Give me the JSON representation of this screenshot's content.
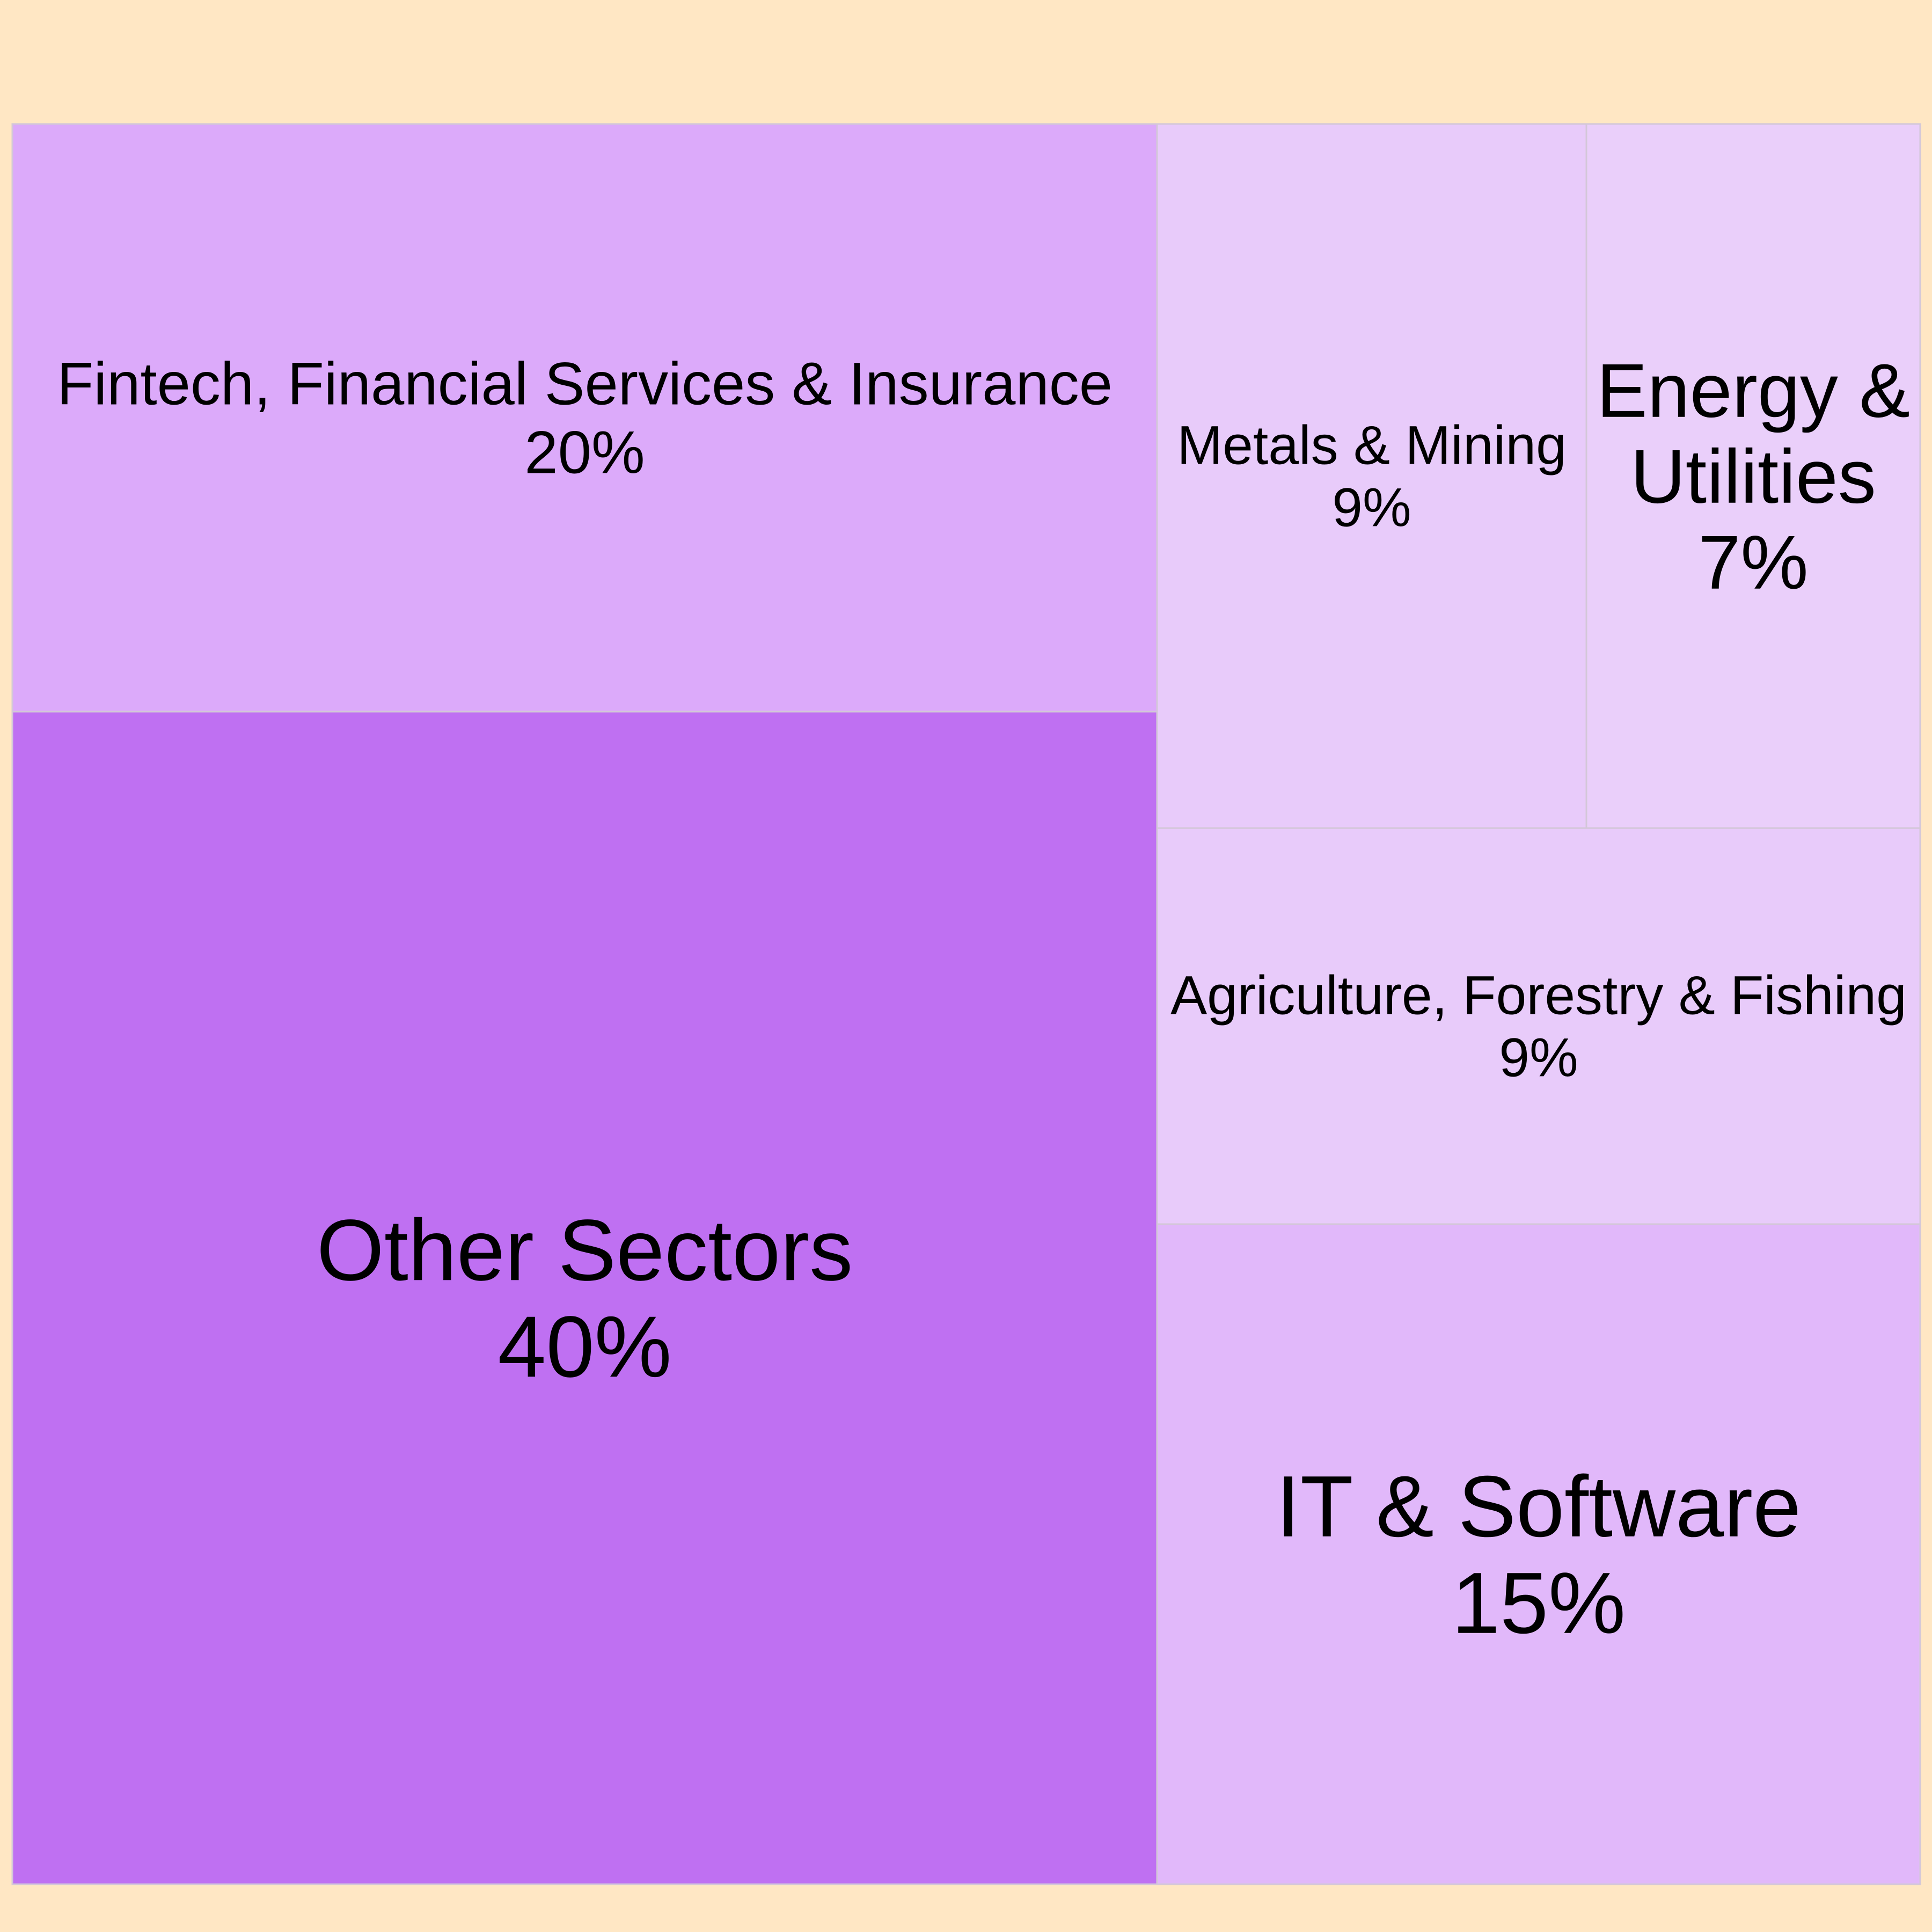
{
  "chart_data": {
    "type": "treemap",
    "title": "",
    "background_color": "#ffe7c4",
    "border_color": "#d3c7d8",
    "value_suffix": "%",
    "items": [
      {
        "label": "Other Sectors",
        "value": 40,
        "value_label": "40%",
        "color": "#bf70f2"
      },
      {
        "label": "Fintech, Financial Services & Insurance",
        "value": 20,
        "value_label": "20%",
        "color": "#dcaafa"
      },
      {
        "label": "IT & Software",
        "value": 15,
        "value_label": "15%",
        "color": "#e1b8fa"
      },
      {
        "label": "Metals & Mining",
        "value": 9,
        "value_label": "9%",
        "color": "#e8cbfa"
      },
      {
        "label": "Agriculture, Forestry & Fishing",
        "value": 9,
        "value_label": "9%",
        "color": "#e8cbfa"
      },
      {
        "label": "Energy & Utilities",
        "value": 7,
        "value_label": "7%",
        "color": "#eacffa",
        "label_lines": [
          "Energy &",
          "Utilities"
        ]
      }
    ]
  }
}
